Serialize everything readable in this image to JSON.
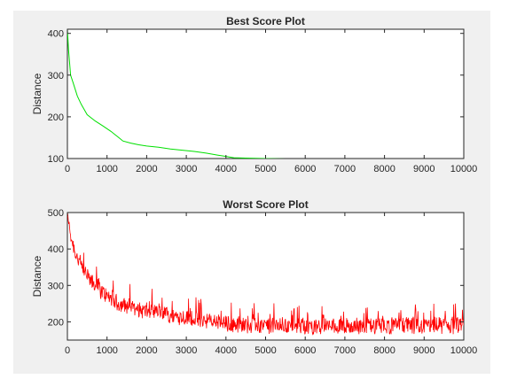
{
  "chart_data": [
    {
      "type": "line",
      "title": "Best Score Plot",
      "xlabel": "",
      "ylabel": "Distance",
      "xlim": [
        0,
        10000
      ],
      "ylim": [
        100,
        410
      ],
      "xticks": [
        0,
        1000,
        2000,
        3000,
        4000,
        5000,
        6000,
        7000,
        8000,
        9000,
        10000
      ],
      "yticks": [
        100,
        200,
        300,
        400
      ],
      "grid": false,
      "series": [
        {
          "color": "#00e000",
          "x": [
            0,
            30,
            80,
            150,
            250,
            350,
            500,
            700,
            900,
            1100,
            1300,
            1400,
            1600,
            1800,
            2000,
            2300,
            2600,
            2900,
            3200,
            3500,
            3800,
            4000,
            4200,
            4500,
            5000,
            5500,
            6000,
            7000,
            8000,
            9000,
            10000
          ],
          "y": [
            410,
            360,
            300,
            280,
            250,
            230,
            205,
            190,
            178,
            165,
            150,
            142,
            137,
            133,
            130,
            127,
            123,
            120,
            117,
            113,
            108,
            105,
            102,
            101,
            100,
            99,
            99,
            98,
            98,
            98,
            98
          ]
        }
      ]
    },
    {
      "type": "line",
      "title": "Worst Score Plot",
      "xlabel": "",
      "ylabel": "Distance",
      "xlim": [
        0,
        10000
      ],
      "ylim": [
        150,
        500
      ],
      "xticks": [
        0,
        1000,
        2000,
        3000,
        4000,
        5000,
        6000,
        7000,
        8000,
        9000,
        10000
      ],
      "yticks": [
        200,
        300,
        400,
        500
      ],
      "grid": false,
      "series": [
        {
          "color": "#ff0000",
          "x": [
            0,
            100,
            200,
            400,
            600,
            800,
            1000,
            1300,
            1600,
            2000,
            2500,
            3000,
            3500,
            4000,
            5000,
            6000,
            7000,
            8000,
            9000,
            10000
          ],
          "y": [
            490,
            430,
            390,
            340,
            310,
            290,
            270,
            250,
            240,
            228,
            220,
            212,
            205,
            195,
            190,
            188,
            188,
            188,
            190,
            190
          ]
        }
      ]
    }
  ]
}
